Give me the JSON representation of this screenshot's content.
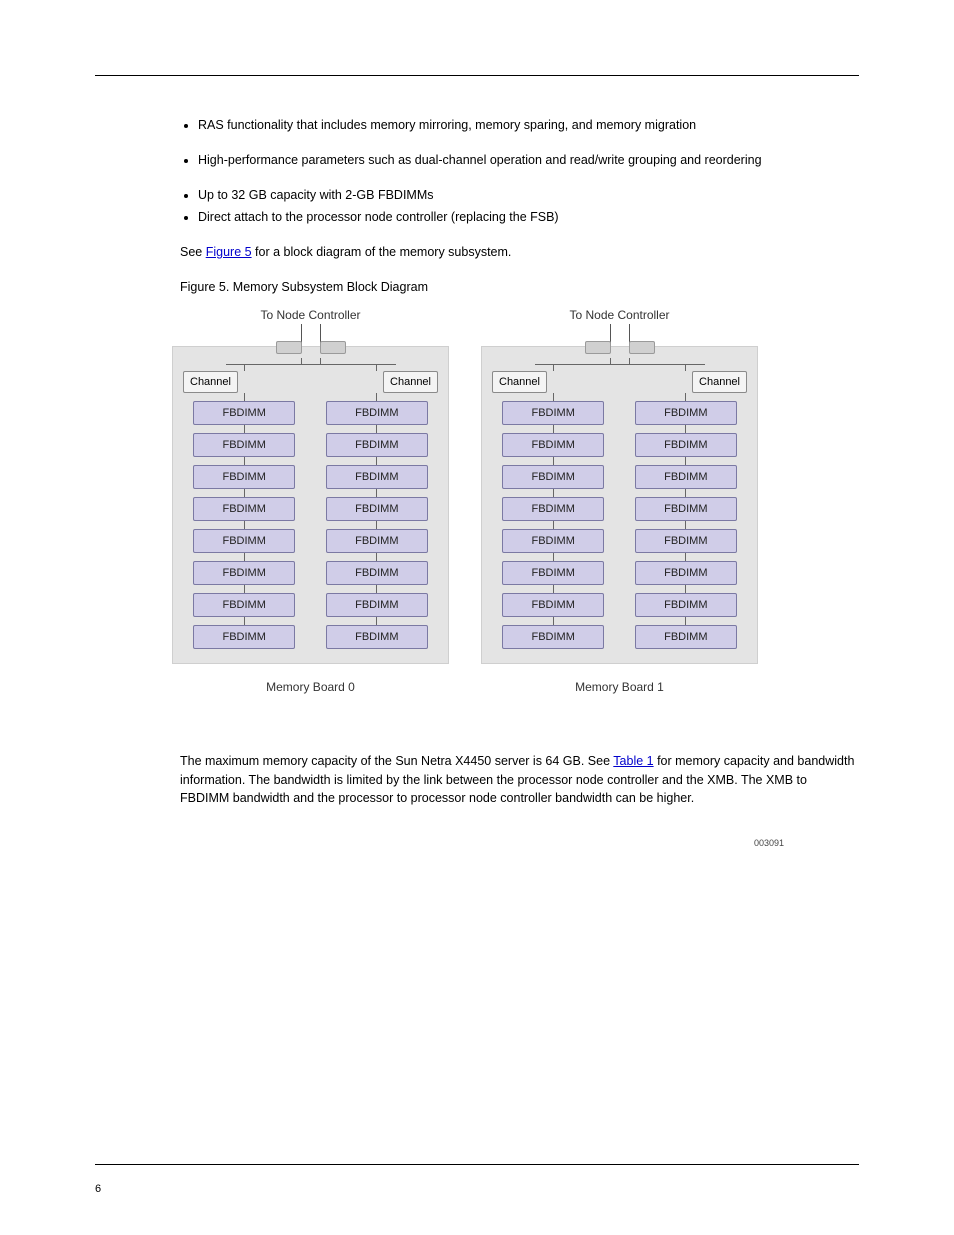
{
  "bullets": {
    "b0": "RAS functionality that includes memory mirroring, memory sparing, and memory migration",
    "b1": "High-performance parameters such as dual-channel operation and read/write grouping and reordering",
    "b2": "Up to 32 GB capacity with 2-GB FBDIMMs",
    "b3": "Direct attach to the processor node controller (replacing the FSB)"
  },
  "pre_fig_text_1": "See ",
  "fig_link_text": "Figure 5",
  "pre_fig_text_2": " for a block diagram of the memory subsystem.",
  "fig_caption": "Figure 5. Memory Subsystem Block Diagram",
  "diagram": {
    "node_label": "To Node Controller",
    "channel_label": "Channel",
    "dimm_label": "FBDIMM",
    "dimms_per_channel": 8,
    "board0_name": "Memory Board 0",
    "board1_name": "Memory Board 1",
    "image_id": "003091",
    "bg_color": "#e4e4e4",
    "dimm_fill": "#d0cde8",
    "dimm_border": "#7b79a3",
    "channel_fill": "#f4f4f4",
    "channel_border": "#8a8a8a"
  },
  "post_fig": {
    "p1a": "The maximum memory capacity of the Sun Netra X4450 server is 64 GB. See ",
    "p1_link": "Table 1",
    "p1b": " for memory capacity and bandwidth information. The bandwidth is limited by the link between the processor node controller and the XMB. The XMB to FBDIMM bandwidth and the processor to processor node controller bandwidth can be higher."
  },
  "page_number": "6"
}
